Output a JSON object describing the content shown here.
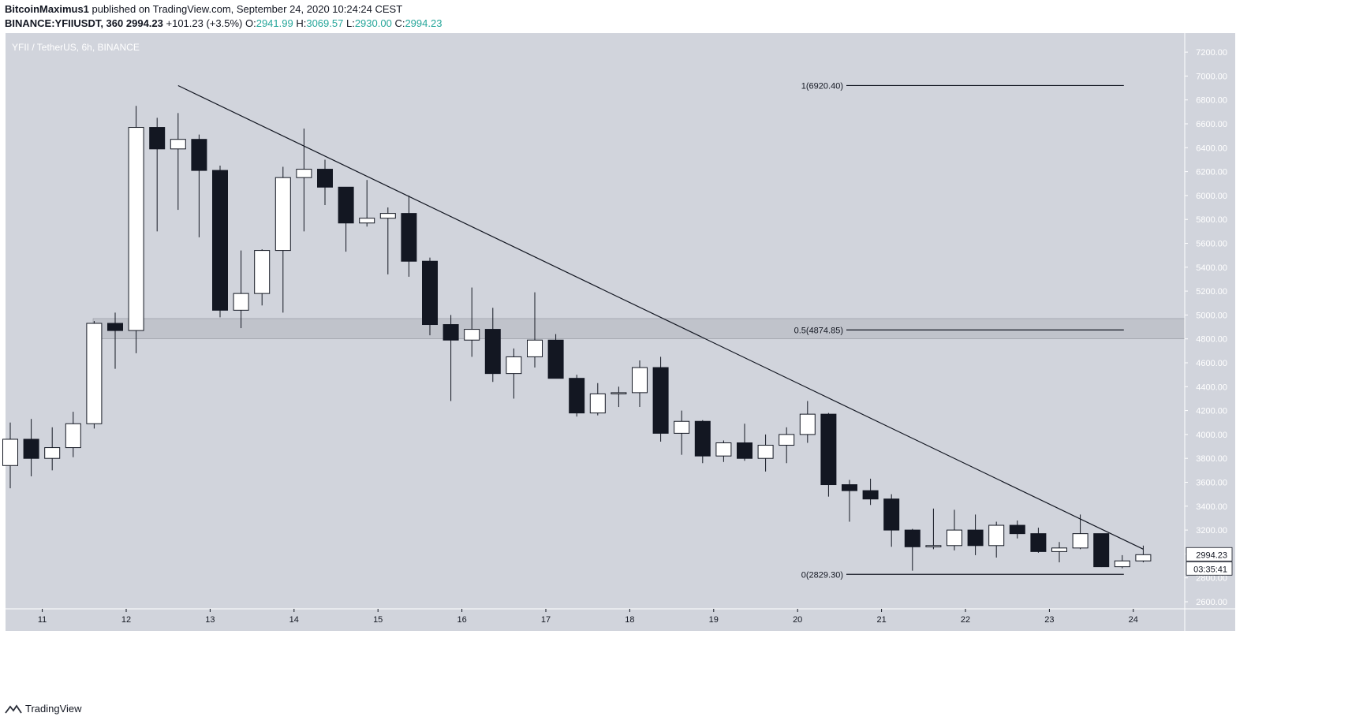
{
  "header": {
    "publisher": "BitcoinMaximus1",
    "published_text": "published on TradingView.com, September 24, 2020 10:24:24 CEST",
    "symbol": "BINANCE:YFIIUSDT, 360",
    "last": "2994.23",
    "change": "+101.23 (+3.5%)",
    "o_label": "O:",
    "o_value": "2941.99",
    "h_label": "H:",
    "h_value": "3069.57",
    "l_label": "L:",
    "l_value": "2930.00",
    "c_label": "C:",
    "c_value": "2994.23"
  },
  "footer": {
    "brand": "TradingView",
    "icon": "tradingview-logo-icon"
  },
  "colors": {
    "background": "#d1d4dc",
    "up_body": "#ffffff",
    "down_body": "#131722",
    "wick": "#131722",
    "zone": "#b2b5be",
    "price_up": "#26a69a"
  },
  "chart_data": {
    "type": "candlestick",
    "title": "YFII / TetherUS, 6h, BINANCE",
    "currency": "USDT",
    "ylim": [
      2500,
      7300
    ],
    "y_ticks": [
      2600,
      2800,
      3000,
      3200,
      3400,
      3600,
      3800,
      4000,
      4200,
      4400,
      4600,
      4800,
      5000,
      5200,
      5400,
      5600,
      5800,
      6000,
      6200,
      6400,
      6600,
      6800,
      7000,
      7200
    ],
    "y_tick_labels": [
      "2600.00",
      "2800.00",
      "3000.00",
      "3200.00",
      "3400.00",
      "3600.00",
      "3800.00",
      "4000.00",
      "4200.00",
      "4400.00",
      "4600.00",
      "4800.00",
      "5000.00",
      "5200.00",
      "5400.00",
      "5600.00",
      "5800.00",
      "6000.00",
      "6200.00",
      "6400.00",
      "6600.00",
      "6800.00",
      "7000.00",
      "7200.00"
    ],
    "x_ticks": [
      {
        "label": "11",
        "i": 1
      },
      {
        "label": "12",
        "i": 5
      },
      {
        "label": "13",
        "i": 9
      },
      {
        "label": "14",
        "i": 13
      },
      {
        "label": "15",
        "i": 17
      },
      {
        "label": "16",
        "i": 21
      },
      {
        "label": "17",
        "i": 25
      },
      {
        "label": "18",
        "i": 29
      },
      {
        "label": "19",
        "i": 33
      },
      {
        "label": "20",
        "i": 37
      },
      {
        "label": "21",
        "i": 41
      },
      {
        "label": "22",
        "i": 45
      },
      {
        "label": "23",
        "i": 49
      },
      {
        "label": "24",
        "i": 53
      }
    ],
    "candles": [
      {
        "o": 3740,
        "h": 4100,
        "l": 3550,
        "c": 3960
      },
      {
        "o": 3960,
        "h": 4130,
        "l": 3650,
        "c": 3800
      },
      {
        "o": 3800,
        "h": 4060,
        "l": 3700,
        "c": 3890
      },
      {
        "o": 3890,
        "h": 4190,
        "l": 3810,
        "c": 4090
      },
      {
        "o": 4090,
        "h": 4950,
        "l": 4050,
        "c": 4930
      },
      {
        "o": 4930,
        "h": 5020,
        "l": 4550,
        "c": 4870
      },
      {
        "o": 4870,
        "h": 6750,
        "l": 4680,
        "c": 6570
      },
      {
        "o": 6570,
        "h": 6650,
        "l": 5700,
        "c": 6390
      },
      {
        "o": 6390,
        "h": 6690,
        "l": 5880,
        "c": 6470
      },
      {
        "o": 6470,
        "h": 6510,
        "l": 5650,
        "c": 6210
      },
      {
        "o": 6210,
        "h": 6250,
        "l": 4980,
        "c": 5040
      },
      {
        "o": 5040,
        "h": 5540,
        "l": 4890,
        "c": 5180
      },
      {
        "o": 5180,
        "h": 5550,
        "l": 5080,
        "c": 5540
      },
      {
        "o": 5540,
        "h": 6240,
        "l": 5020,
        "c": 6150
      },
      {
        "o": 6150,
        "h": 6560,
        "l": 5700,
        "c": 6220
      },
      {
        "o": 6220,
        "h": 6300,
        "l": 5920,
        "c": 6070
      },
      {
        "o": 6070,
        "h": 6070,
        "l": 5530,
        "c": 5770
      },
      {
        "o": 5770,
        "h": 6130,
        "l": 5740,
        "c": 5810
      },
      {
        "o": 5810,
        "h": 5900,
        "l": 5340,
        "c": 5850
      },
      {
        "o": 5850,
        "h": 6000,
        "l": 5320,
        "c": 5450
      },
      {
        "o": 5450,
        "h": 5480,
        "l": 4830,
        "c": 4920
      },
      {
        "o": 4920,
        "h": 5000,
        "l": 4280,
        "c": 4790
      },
      {
        "o": 4790,
        "h": 5230,
        "l": 4650,
        "c": 4880
      },
      {
        "o": 4880,
        "h": 5060,
        "l": 4440,
        "c": 4510
      },
      {
        "o": 4510,
        "h": 4720,
        "l": 4300,
        "c": 4650
      },
      {
        "o": 4650,
        "h": 5190,
        "l": 4560,
        "c": 4790
      },
      {
        "o": 4790,
        "h": 4840,
        "l": 4470,
        "c": 4470
      },
      {
        "o": 4470,
        "h": 4500,
        "l": 4150,
        "c": 4180
      },
      {
        "o": 4180,
        "h": 4430,
        "l": 4160,
        "c": 4340
      },
      {
        "o": 4340,
        "h": 4400,
        "l": 4230,
        "c": 4350
      },
      {
        "o": 4350,
        "h": 4620,
        "l": 4230,
        "c": 4560
      },
      {
        "o": 4560,
        "h": 4650,
        "l": 3940,
        "c": 4010
      },
      {
        "o": 4010,
        "h": 4200,
        "l": 3830,
        "c": 4110
      },
      {
        "o": 4110,
        "h": 4120,
        "l": 3760,
        "c": 3820
      },
      {
        "o": 3820,
        "h": 3950,
        "l": 3770,
        "c": 3930
      },
      {
        "o": 3930,
        "h": 4090,
        "l": 3780,
        "c": 3800
      },
      {
        "o": 3800,
        "h": 4000,
        "l": 3690,
        "c": 3910
      },
      {
        "o": 3910,
        "h": 4060,
        "l": 3760,
        "c": 4000
      },
      {
        "o": 4000,
        "h": 4280,
        "l": 3930,
        "c": 4170
      },
      {
        "o": 4170,
        "h": 4180,
        "l": 3480,
        "c": 3580
      },
      {
        "o": 3580,
        "h": 3620,
        "l": 3270,
        "c": 3530
      },
      {
        "o": 3530,
        "h": 3630,
        "l": 3410,
        "c": 3460
      },
      {
        "o": 3460,
        "h": 3500,
        "l": 3060,
        "c": 3200
      },
      {
        "o": 3200,
        "h": 3210,
        "l": 2860,
        "c": 3060
      },
      {
        "o": 3060,
        "h": 3380,
        "l": 3040,
        "c": 3070
      },
      {
        "o": 3070,
        "h": 3370,
        "l": 3030,
        "c": 3200
      },
      {
        "o": 3200,
        "h": 3330,
        "l": 2990,
        "c": 3070
      },
      {
        "o": 3070,
        "h": 3270,
        "l": 2970,
        "c": 3240
      },
      {
        "o": 3240,
        "h": 3280,
        "l": 3130,
        "c": 3170
      },
      {
        "o": 3170,
        "h": 3220,
        "l": 3010,
        "c": 3020
      },
      {
        "o": 3020,
        "h": 3100,
        "l": 2930,
        "c": 3050
      },
      {
        "o": 3050,
        "h": 3330,
        "l": 3040,
        "c": 3170
      },
      {
        "o": 3170,
        "h": 3170,
        "l": 2890,
        "c": 2893
      },
      {
        "o": 2893,
        "h": 2990,
        "l": 2880,
        "c": 2942
      },
      {
        "o": 2942,
        "h": 3070,
        "l": 2930,
        "c": 2994
      }
    ],
    "trendline": {
      "from": {
        "i": 8,
        "price": 6920
      },
      "to": {
        "i": 54,
        "price": 3040
      }
    },
    "support_zone": [
      4800,
      4970
    ],
    "fib_levels": [
      {
        "label": "1(6920.40)",
        "price": 6920.4
      },
      {
        "label": "0.5(4874.85)",
        "price": 4874.85
      },
      {
        "label": "0(2829.30)",
        "price": 2829.3
      }
    ],
    "fib_start_i": 40,
    "fib_end_i": 53,
    "last_price_label": "2994.23",
    "countdown_label": "03:35:41"
  }
}
